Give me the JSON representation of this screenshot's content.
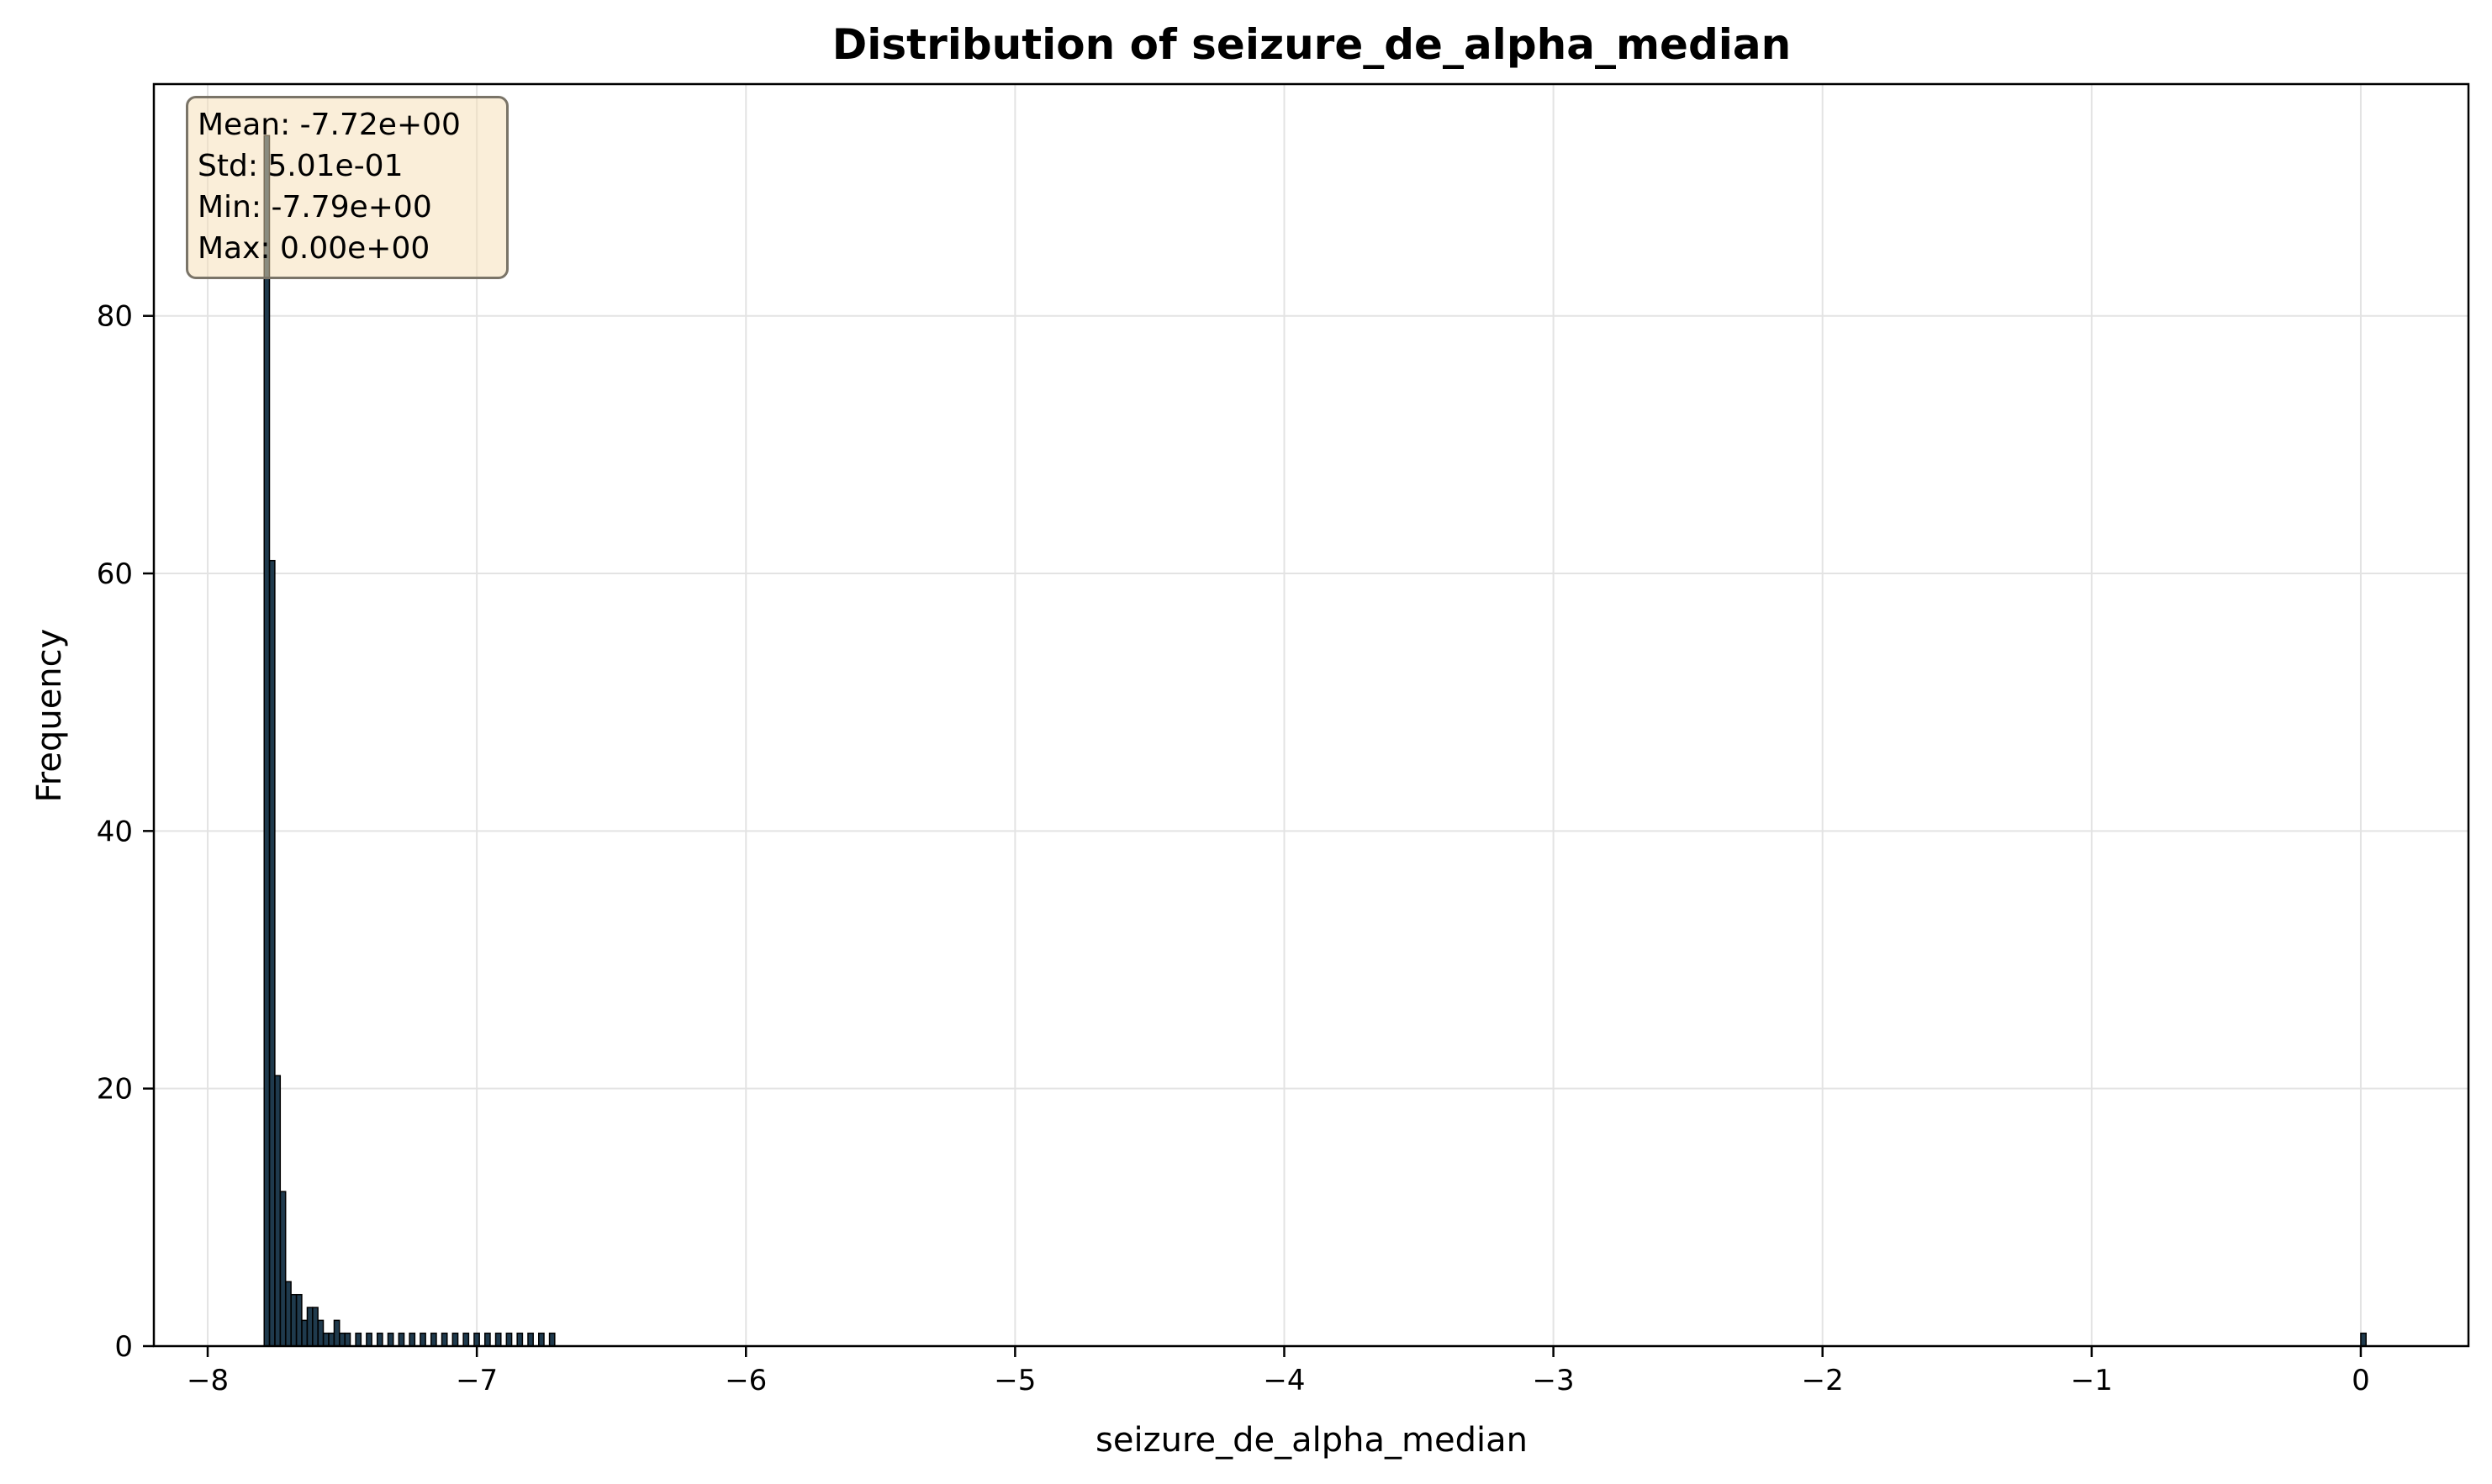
{
  "chart_data": {
    "type": "bar",
    "title": "Distribution of seizure_de_alpha_median",
    "xlabel": "seizure_de_alpha_median",
    "ylabel": "Frequency",
    "xlim": [
      -8.2,
      0.4
    ],
    "ylim": [
      0,
      98
    ],
    "grid": true,
    "bin_width": 0.0195,
    "x_ticks": [
      -8,
      -7,
      -6,
      -5,
      -4,
      -3,
      -2,
      -1,
      0
    ],
    "x_tick_labels": [
      "−8",
      "−7",
      "−6",
      "−5",
      "−4",
      "−3",
      "−2",
      "−1",
      "0"
    ],
    "y_ticks": [
      0,
      20,
      40,
      60,
      80
    ],
    "y_tick_labels": [
      "0",
      "20",
      "40",
      "60",
      "80"
    ],
    "bins": [
      {
        "x": -7.79,
        "count": 94
      },
      {
        "x": -7.77,
        "count": 61
      },
      {
        "x": -7.75,
        "count": 21
      },
      {
        "x": -7.73,
        "count": 12
      },
      {
        "x": -7.71,
        "count": 5
      },
      {
        "x": -7.69,
        "count": 4
      },
      {
        "x": -7.67,
        "count": 4
      },
      {
        "x": -7.65,
        "count": 2
      },
      {
        "x": -7.63,
        "count": 3
      },
      {
        "x": -7.61,
        "count": 3
      },
      {
        "x": -7.59,
        "count": 2
      },
      {
        "x": -7.57,
        "count": 1
      },
      {
        "x": -7.55,
        "count": 1
      },
      {
        "x": -7.53,
        "count": 2
      },
      {
        "x": -7.51,
        "count": 1
      },
      {
        "x": -7.49,
        "count": 1
      },
      {
        "x": -7.45,
        "count": 1
      },
      {
        "x": -7.41,
        "count": 1
      },
      {
        "x": -7.37,
        "count": 1
      },
      {
        "x": -7.33,
        "count": 1
      },
      {
        "x": -7.29,
        "count": 1
      },
      {
        "x": -7.25,
        "count": 1
      },
      {
        "x": -7.21,
        "count": 1
      },
      {
        "x": -7.17,
        "count": 1
      },
      {
        "x": -7.13,
        "count": 1
      },
      {
        "x": -7.09,
        "count": 1
      },
      {
        "x": -7.05,
        "count": 1
      },
      {
        "x": -7.01,
        "count": 1
      },
      {
        "x": -6.97,
        "count": 1
      },
      {
        "x": -6.93,
        "count": 1
      },
      {
        "x": -6.89,
        "count": 1
      },
      {
        "x": -6.85,
        "count": 1
      },
      {
        "x": -6.81,
        "count": 1
      },
      {
        "x": -6.77,
        "count": 1
      },
      {
        "x": -6.73,
        "count": 1
      },
      {
        "x": 0.0,
        "count": 1
      }
    ],
    "colors": {
      "bar_fill": "#1f3a4d",
      "bar_edge": "#000000",
      "grid": "#e3e3e3",
      "stats_box_fill": "#f5deb3",
      "stats_box_border": "#7a7468"
    },
    "stats_box": {
      "lines": [
        "Mean: -7.72e+00",
        "Std: 5.01e-01",
        "Min: -7.79e+00",
        "Max: 0.00e+00"
      ]
    }
  }
}
